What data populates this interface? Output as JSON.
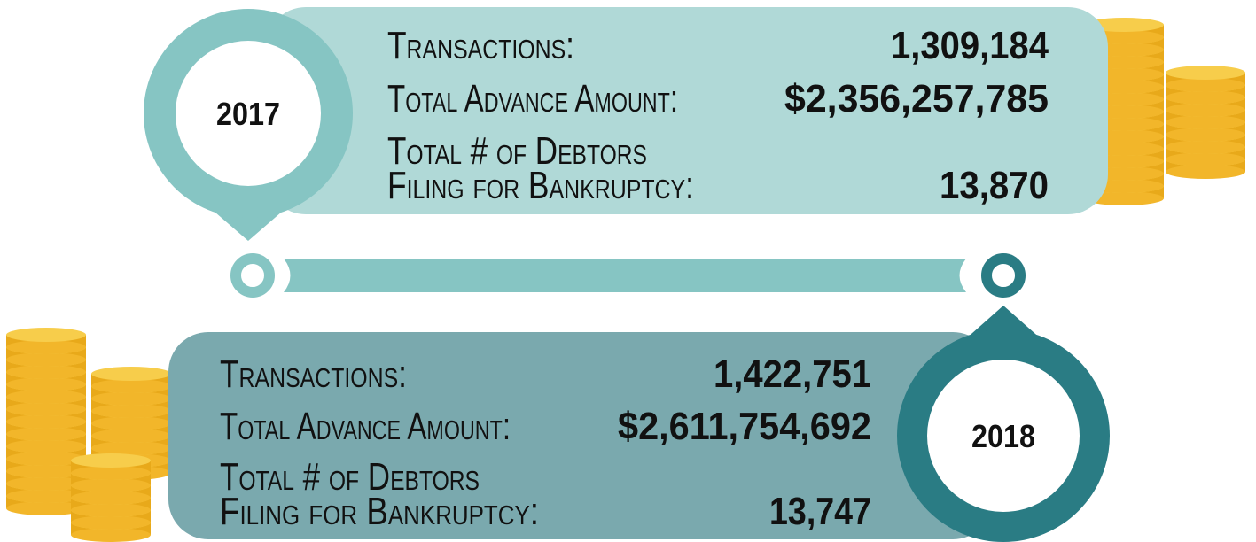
{
  "panels": [
    {
      "year": "2017",
      "rows": [
        {
          "label": [
            "Transactions:"
          ],
          "value": "1,309,184"
        },
        {
          "label": [
            "Total Advance Amount:"
          ],
          "value": "$2,356,257,785"
        },
        {
          "label": [
            "Total # of Debtors",
            "Filing for Bankruptcy:"
          ],
          "value": "13,870"
        }
      ]
    },
    {
      "year": "2018",
      "rows": [
        {
          "label": [
            "Transactions:"
          ],
          "value": "1,422,751"
        },
        {
          "label": [
            "Total Advance Amount:"
          ],
          "value": "$2,611,754,692"
        },
        {
          "label": [
            "Total # of Debtors",
            "Filing for Bankruptcy:"
          ],
          "value": "13,747"
        }
      ]
    }
  ]
}
